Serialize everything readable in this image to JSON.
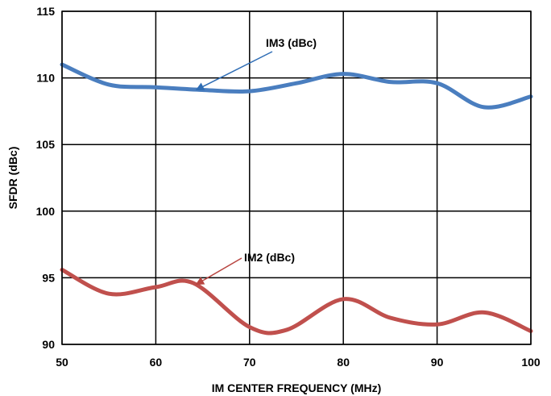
{
  "chart_data": {
    "type": "line",
    "xlabel": "IM CENTER FREQUENCY (MHz)",
    "ylabel": "SFDR (dBc)",
    "xlim": [
      50,
      100
    ],
    "ylim": [
      90,
      115
    ],
    "x_ticks": [
      50,
      60,
      70,
      80,
      90,
      100
    ],
    "y_ticks": [
      90,
      95,
      100,
      105,
      110,
      115
    ],
    "x_tick_labels": [
      "50",
      "60",
      "70",
      "80",
      "90",
      "100"
    ],
    "y_tick_labels": [
      "90",
      "95",
      "100",
      "105",
      "110",
      "115"
    ],
    "grid": true,
    "series": [
      {
        "name": "IM3 (dBc)",
        "color": "#4a7ebf",
        "x": [
          50,
          55,
          60,
          65,
          70,
          75,
          80,
          85,
          90,
          95,
          100
        ],
        "y": [
          111.0,
          109.5,
          109.3,
          109.1,
          109.0,
          109.6,
          110.3,
          109.7,
          109.6,
          107.8,
          108.6
        ]
      },
      {
        "name": "IM2 (dBc)",
        "color": "#c0504d",
        "x": [
          50,
          55,
          60,
          64,
          70,
          74,
          80,
          85,
          90,
          95,
          100
        ],
        "y": [
          95.6,
          93.8,
          94.3,
          94.6,
          91.3,
          91.1,
          93.4,
          92.0,
          91.5,
          92.4,
          91.0
        ]
      }
    ],
    "annotations": [
      {
        "text": "IM3 (dBc)",
        "series": 0,
        "x": 65,
        "y": 109.1
      },
      {
        "text": "IM2 (dBc)",
        "series": 1,
        "x": 65,
        "y": 94.5
      }
    ]
  }
}
